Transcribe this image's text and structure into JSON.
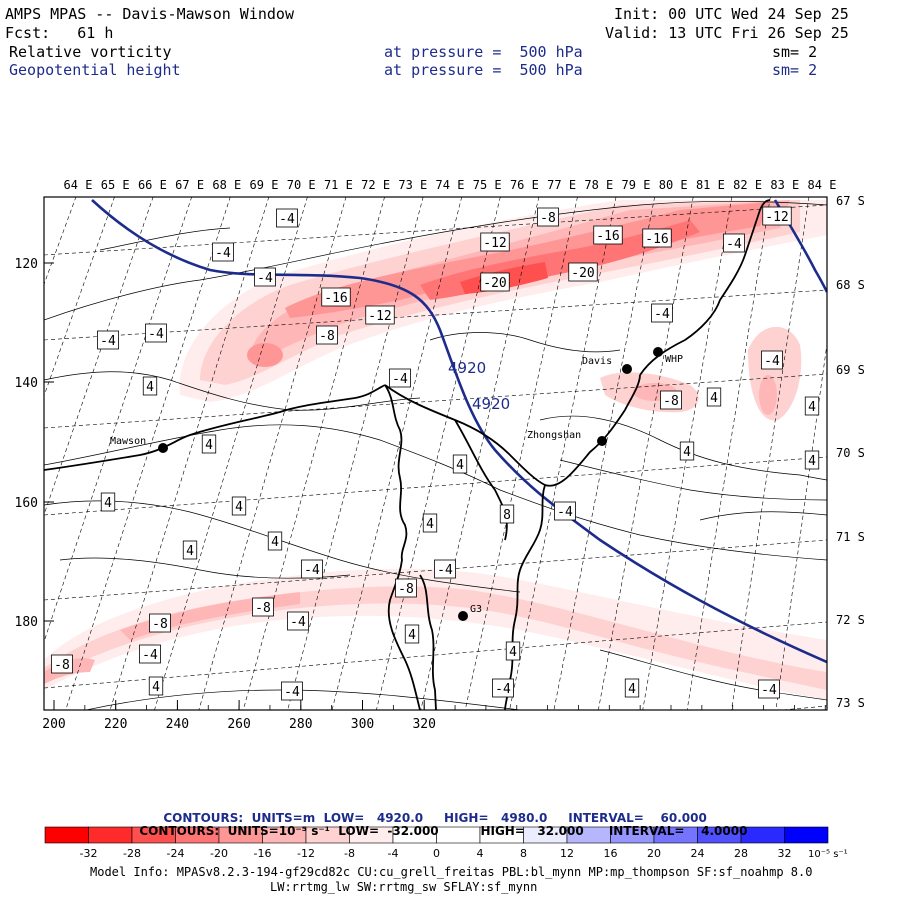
{
  "header": {
    "title": "AMPS MPAS -- Davis-Mawson Window",
    "forecast": "Fcst:   61 h",
    "init": "Init: 00 UTC Wed 24 Sep 25",
    "valid": "Valid: 13 UTC Fri 26 Sep 25",
    "field1": {
      "name": "Relative vorticity",
      "level": "at pressure =  500 hPa",
      "smooth": "sm= 2"
    },
    "field2": {
      "name": "Geopotential height",
      "level": "at pressure =  500 hPa",
      "smooth": "sm= 2"
    }
  },
  "colors": {
    "geopotential": "#1d2c8c",
    "text_blue": "#1d2c8c",
    "coast": "#000000"
  },
  "map": {
    "top_labels": [
      "64 E",
      "65 E",
      "66 E",
      "67 E",
      "68 E",
      "69 E",
      "70 E",
      "71 E",
      "72 E",
      "73 E",
      "74 E",
      "75 E",
      "76 E",
      "77 E",
      "78 E",
      "79 E",
      "80 E",
      "81 E",
      "82 E",
      "83 E",
      "84 E"
    ],
    "right_labels": [
      "67 S",
      "68 S",
      "69 S",
      "70 S",
      "71 S",
      "72 S",
      "73 S"
    ],
    "x_ticks": [
      "200",
      "220",
      "240",
      "260",
      "280",
      "300",
      "320"
    ],
    "y_ticks": [
      "120",
      "140",
      "160",
      "180"
    ],
    "height_labels": [
      "4920",
      "4920"
    ],
    "stations": [
      {
        "name": "Mawson"
      },
      {
        "name": "Davis"
      },
      {
        "name": "WHP"
      },
      {
        "name": "Zhongshan"
      },
      {
        "name": "G3"
      }
    ],
    "vort_labels": [
      "-4",
      "-8",
      "-12",
      "-16",
      "-20",
      "4",
      "8"
    ]
  },
  "legend": {
    "line1": {
      "label": "CONTOURS:",
      "units": "UNITS=m",
      "low": "LOW=   4920.0",
      "high": "HIGH=   4980.0",
      "interval": "INTERVAL=    60.000"
    },
    "line2": {
      "label": "CONTOURS:",
      "units": "UNITS=10⁻⁵ s⁻¹",
      "low": "LOW=  -32.000",
      "high": "HIGH=   32.000",
      "interval": "INTERVAL=    4.0000"
    },
    "values": [
      -32,
      -28,
      -24,
      -20,
      -16,
      -12,
      -8,
      -4,
      0,
      4,
      8,
      12,
      16,
      20,
      24,
      28,
      32
    ],
    "bin_colors": [
      "#ff0000",
      "#ff2a2a",
      "#ff5050",
      "#ff7474",
      "#ff9696",
      "#ffb6b6",
      "#ffd2d2",
      "#ffecec",
      "#ffffff",
      "#ffffff",
      "#ececff",
      "#b6b6ff",
      "#9696ff",
      "#7474ff",
      "#5050ff",
      "#2a2aff",
      "#0000ff"
    ],
    "unit": "10⁻⁵ s⁻¹"
  },
  "model_info": {
    "line1": "Model Info: MPASv8.2.3-194-gf29cd82c CU:cu_grell_freitas PBL:bl_mynn MP:mp_thompson SF:sf_noahmp 8.0",
    "line2": "LW:rrtmg_lw SW:rrtmg_sw SFLAY:sf_mynn"
  }
}
